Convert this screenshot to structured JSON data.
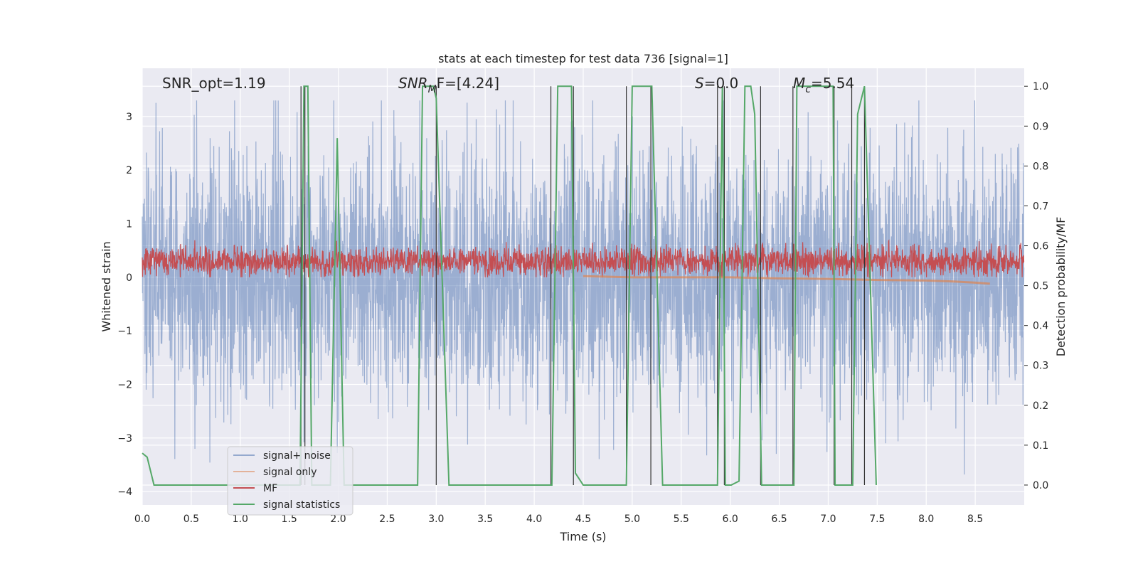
{
  "chart_data": {
    "type": "line",
    "title": "stats at each timestep for test data 736 [signal=1]",
    "xlabel": "Time (s)",
    "ylabel": "Whitened strain",
    "y2label": "Detection probability/MF",
    "xlim": [
      0,
      9.0
    ],
    "ylim": [
      -4.25,
      3.9
    ],
    "y2lim": [
      -0.05,
      1.045
    ],
    "xticks": [
      "0.0",
      "0.5",
      "1.0",
      "1.5",
      "2.0",
      "2.5",
      "3.0",
      "3.5",
      "4.0",
      "4.5",
      "5.0",
      "5.5",
      "6.0",
      "6.5",
      "7.0",
      "7.5",
      "8.0",
      "8.5"
    ],
    "yticks": [
      "−4",
      "−3",
      "−2",
      "−1",
      "0",
      "1",
      "2",
      "3"
    ],
    "y2ticks": [
      "0.0",
      "0.1",
      "0.2",
      "0.3",
      "0.4",
      "0.5",
      "0.6",
      "0.7",
      "0.8",
      "0.9",
      "1.0"
    ],
    "grid": true,
    "legend_location": "lower-left",
    "annotations": [
      {
        "id": "snr-opt",
        "text": "SNR_opt=1.19"
      },
      {
        "id": "snr-mf",
        "text": "SNR_MF=[4.24]",
        "italic_main": "SNR",
        "subscript": "M",
        "tail": "F=[4.24]"
      },
      {
        "id": "s",
        "text": "S=0.0",
        "italic_main": "S",
        "tail": "=0.0"
      },
      {
        "id": "mc",
        "text": "M_c=5.54",
        "italic_main": "M",
        "subscript": "c",
        "tail": "=5.54"
      }
    ],
    "series": [
      {
        "name": "signal+ noise",
        "color": "#4c72b0",
        "opacity": 0.5,
        "axis": "left",
        "description": "whitened noisy strain, roughly within -3.9 to 3.3"
      },
      {
        "name": "signal only",
        "color": "#dd8452",
        "opacity": 0.5,
        "axis": "left",
        "description": "chirp visible near the end",
        "x": [
          4.5,
          5.0,
          5.5,
          6.0,
          6.5,
          7.0,
          7.5,
          8.0,
          8.3,
          8.5,
          8.65
        ],
        "y": [
          0.02,
          0.0,
          0.0,
          0.0,
          -0.02,
          -0.03,
          -0.05,
          -0.06,
          -0.08,
          -0.1,
          -0.12
        ]
      },
      {
        "name": "MF",
        "color": "#c44e52",
        "axis": "left",
        "description": "matched filter output around 0.3, ranging about 0 to 1"
      },
      {
        "name": "signal statistics",
        "color": "#55a868",
        "axis": "right",
        "x": [
          0.0,
          0.05,
          0.12,
          0.25,
          1.61,
          1.65,
          1.69,
          1.73,
          1.92,
          1.99,
          2.06,
          2.1,
          2.81,
          2.86,
          2.97,
          3.0,
          3.13,
          4.18,
          4.24,
          4.38,
          4.42,
          4.5,
          4.94,
          5.0,
          5.18,
          5.2,
          5.31,
          5.87,
          5.92,
          5.95,
          6.01,
          6.09,
          6.15,
          6.21,
          6.25,
          6.32,
          6.65,
          6.68,
          7.05,
          7.07,
          7.25,
          7.3,
          7.37,
          7.49
        ],
        "y": [
          0.08,
          0.07,
          0.0,
          0.0,
          0.0,
          1.0,
          1.0,
          0.0,
          0.0,
          0.87,
          0.0,
          0.0,
          0.0,
          1.0,
          1.0,
          0.97,
          0.0,
          0.0,
          1.0,
          1.0,
          0.03,
          0.0,
          0.0,
          1.0,
          1.0,
          1.0,
          0.0,
          0.0,
          1.0,
          0.0,
          0.0,
          0.01,
          1.0,
          1.0,
          0.93,
          0.0,
          0.0,
          1.0,
          1.0,
          0.0,
          0.0,
          0.93,
          1.0,
          0.0
        ]
      },
      {
        "name": "",
        "color": "#333333",
        "axis": "right",
        "description": "vertical markers",
        "x": [
          1.62,
          1.66,
          3.0,
          4.17,
          4.4,
          4.94,
          5.19,
          5.87,
          5.94,
          6.31,
          6.64,
          7.06,
          7.24,
          7.37
        ]
      }
    ],
    "legend": [
      {
        "label": "signal+ noise",
        "color": "#4c72b0",
        "opacity": 0.55
      },
      {
        "label": "signal only",
        "color": "#dd8452",
        "opacity": 0.55
      },
      {
        "label": "MF",
        "color": "#c44e52",
        "opacity": 1
      },
      {
        "label": "signal statistics",
        "color": "#55a868",
        "opacity": 1
      }
    ]
  }
}
